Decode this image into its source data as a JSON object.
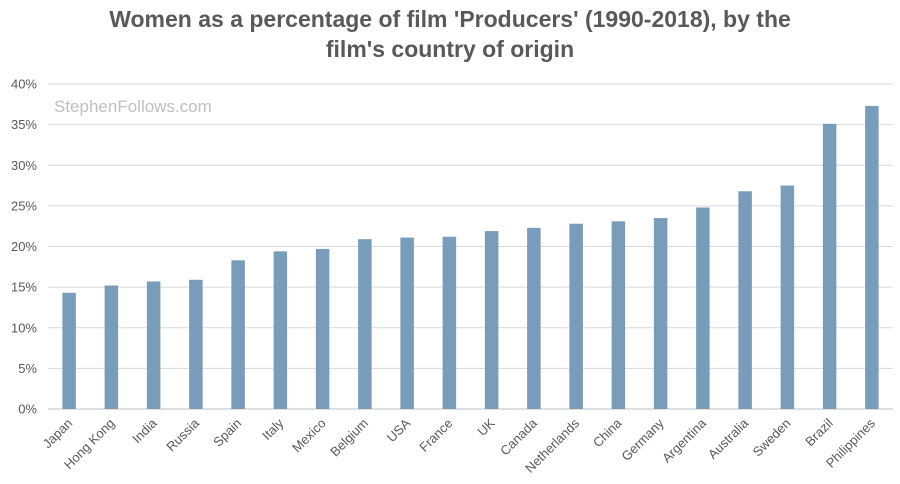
{
  "chart_data": {
    "type": "bar",
    "title": "Women as a percentage of film 'Producers' (1990-2018), by the\nfilm's country of origin",
    "watermark": "StephenFollows.com",
    "xlabel": "",
    "ylabel": "",
    "ylim": [
      0,
      40
    ],
    "y_ticks": [
      "0%",
      "5%",
      "10%",
      "15%",
      "20%",
      "25%",
      "30%",
      "35%",
      "40%"
    ],
    "grid": true,
    "bar_color": "#7a9cbb",
    "categories": [
      "Japan",
      "Hong Kong",
      "India",
      "Russia",
      "Spain",
      "Italy",
      "Mexico",
      "Belgium",
      "USA",
      "France",
      "UK",
      "Canada",
      "Netherlands",
      "China",
      "Germany",
      "Argentina",
      "Australia",
      "Sweden",
      "Brazil",
      "Philippines"
    ],
    "values": [
      14.3,
      15.2,
      15.7,
      15.9,
      18.3,
      19.4,
      19.7,
      20.9,
      21.1,
      21.2,
      21.9,
      22.3,
      22.8,
      23.1,
      23.5,
      24.8,
      26.8,
      27.5,
      35.1,
      37.3
    ]
  }
}
